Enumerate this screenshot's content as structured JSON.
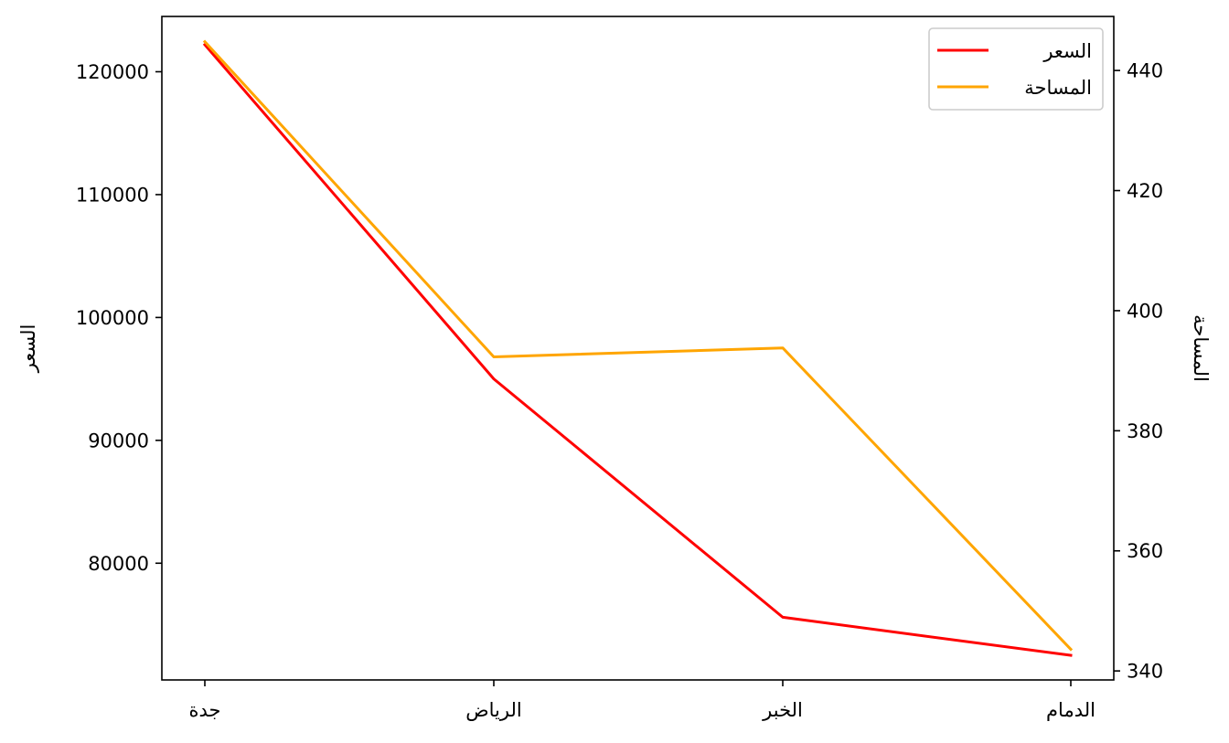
{
  "chart_data": {
    "type": "line",
    "categories": [
      "جدة",
      "الرياض",
      "الخبر",
      "الدمام"
    ],
    "y_left": {
      "label": "السعر",
      "lim": [
        70500,
        124500
      ],
      "ticks": [
        80000,
        90000,
        100000,
        110000,
        120000
      ],
      "tick_labels": [
        "80000",
        "90000",
        "100000",
        "110000",
        "120000"
      ]
    },
    "y_right": {
      "label": "المساحة",
      "lim": [
        338.5,
        449.0
      ],
      "ticks": [
        340,
        360,
        380,
        400,
        420,
        440
      ],
      "tick_labels": [
        "340",
        "360",
        "380",
        "400",
        "420",
        "440"
      ]
    },
    "series": [
      {
        "name": "السعر",
        "axis": "left",
        "color": "#ff0000",
        "values": [
          122200,
          95000,
          75600,
          72500
        ]
      },
      {
        "name": "المساحة",
        "axis": "right",
        "color": "#ffa500",
        "values": [
          444.8,
          392.3,
          393.8,
          343.6
        ]
      }
    ],
    "legend": "top-right",
    "grid": false
  }
}
